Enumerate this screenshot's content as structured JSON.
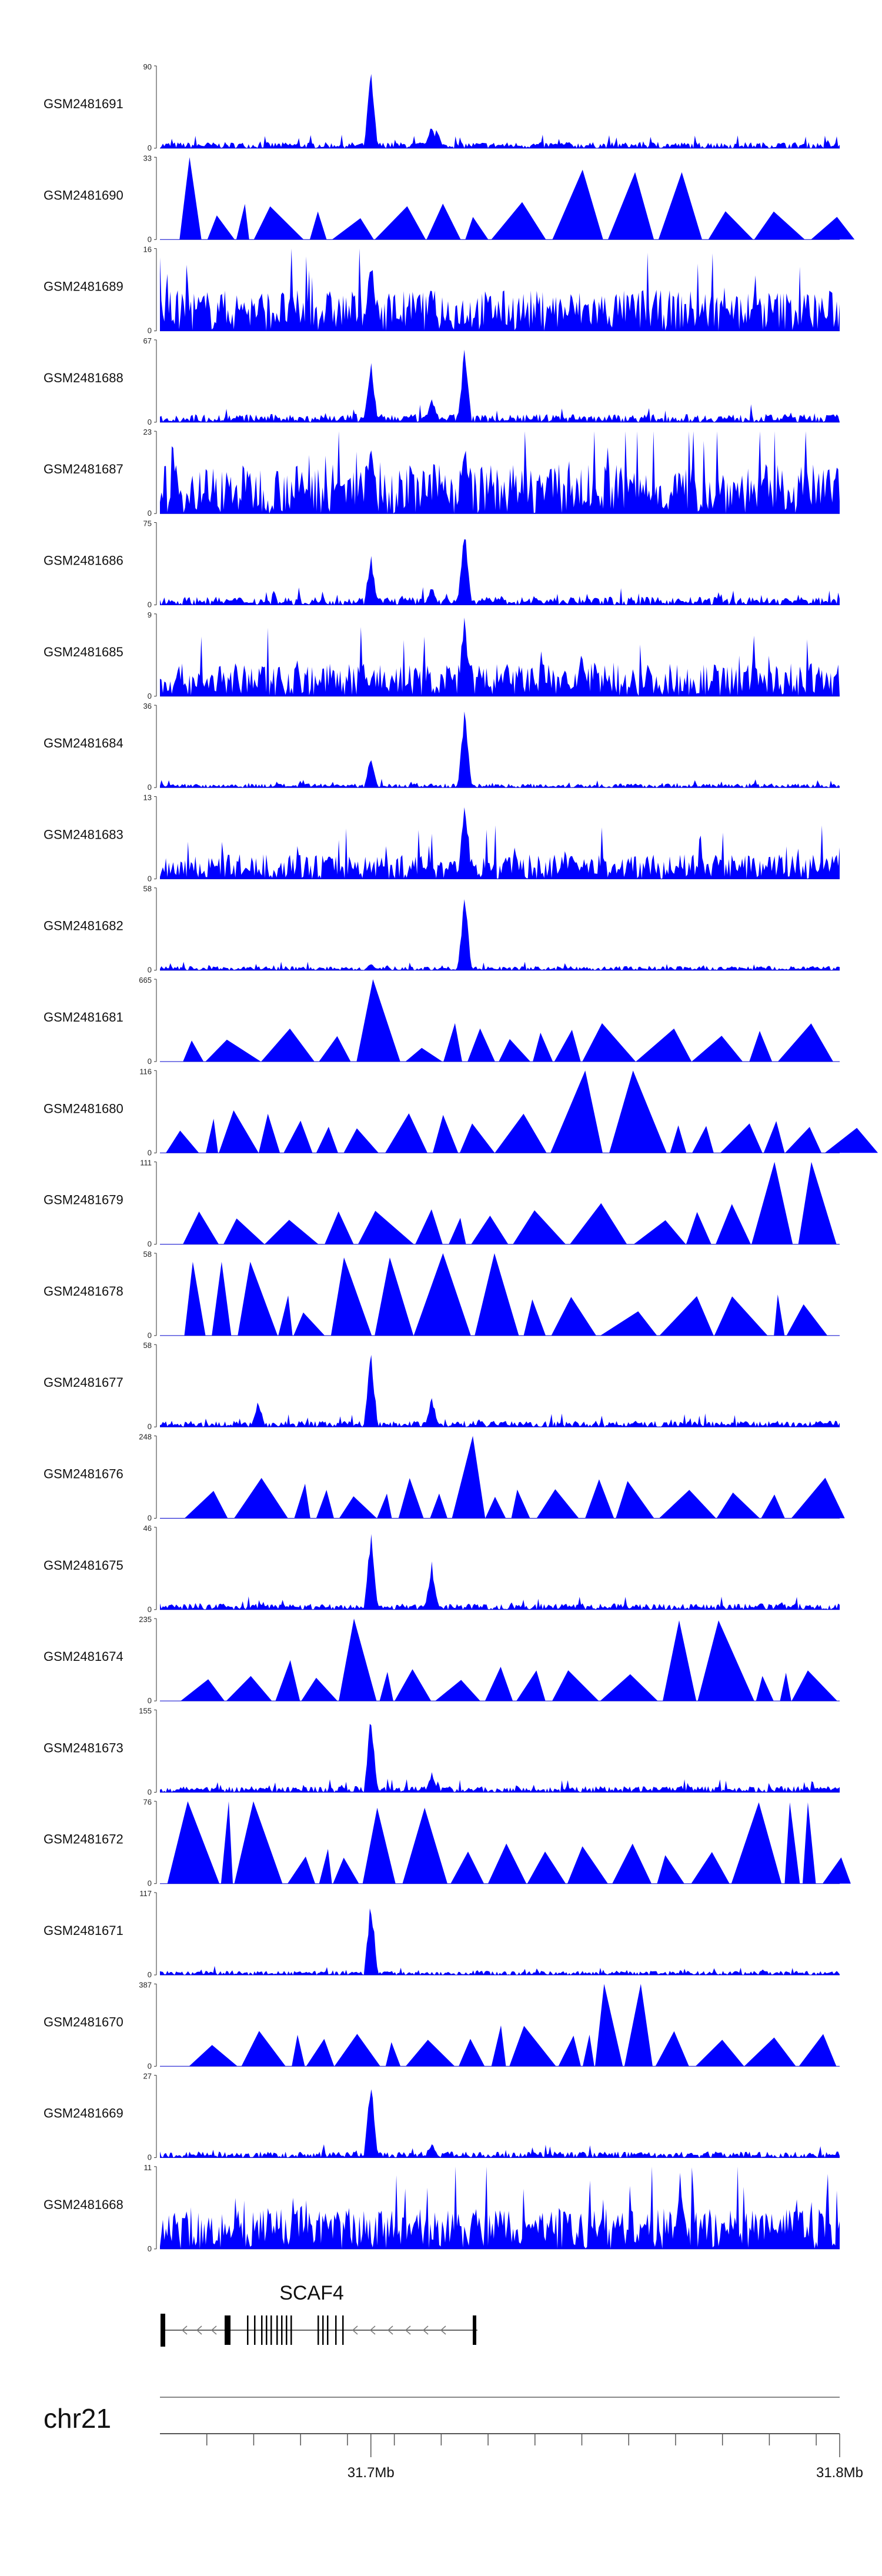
{
  "chart_data": {
    "type": "area",
    "fill_color": "#0000FF",
    "region": {
      "chrom": "chr21",
      "start": 31.655,
      "end": 31.8,
      "unit": "Mb"
    },
    "x_ticks": [
      31.7,
      31.8
    ],
    "x_tick_labels": [
      "31.7Mb",
      "31.8Mb"
    ],
    "chrom_label": "chr21",
    "gene": {
      "name": "SCAF4",
      "strand": "-"
    },
    "tracks": [
      {
        "name": "GSM2481691",
        "ymax": "90",
        "ymin": "0",
        "style": "peaky",
        "peaks": [
          [
            31.7,
            90
          ],
          [
            31.713,
            28
          ],
          [
            31.714,
            22
          ]
        ],
        "noise": 3
      },
      {
        "name": "GSM2481690",
        "ymax": "33",
        "ymin": "0",
        "style": "tri",
        "tallest": [
          [
            31.661,
            33
          ],
          [
            31.752,
            28
          ],
          [
            31.765,
            27
          ]
        ]
      },
      {
        "name": "GSM2481689",
        "ymax": "16",
        "ymin": "0",
        "style": "noise",
        "peaks": [
          [
            31.7,
            16
          ],
          [
            31.713,
            9
          ],
          [
            31.776,
            6
          ]
        ],
        "noise": 5
      },
      {
        "name": "GSM2481688",
        "ymax": "67",
        "ymin": "0",
        "style": "peaky",
        "peaks": [
          [
            31.7,
            55
          ],
          [
            31.713,
            22
          ],
          [
            31.72,
            67
          ]
        ],
        "noise": 4
      },
      {
        "name": "GSM2481687",
        "ymax": "23",
        "ymin": "0",
        "style": "noise",
        "peaks": [
          [
            31.7,
            23
          ],
          [
            31.72,
            22
          ]
        ],
        "noise": 6
      },
      {
        "name": "GSM2481686",
        "ymax": "75",
        "ymin": "0",
        "style": "peaky",
        "peaks": [
          [
            31.7,
            48
          ],
          [
            31.713,
            18
          ],
          [
            31.72,
            75
          ]
        ],
        "noise": 4
      },
      {
        "name": "GSM2481685",
        "ymax": "9",
        "ymin": "0",
        "style": "noise",
        "peaks": [
          [
            31.72,
            9
          ],
          [
            31.745,
            5
          ]
        ],
        "noise": 4
      },
      {
        "name": "GSM2481684",
        "ymax": "36",
        "ymin": "0",
        "style": "peaky",
        "peaks": [
          [
            31.7,
            15
          ],
          [
            31.72,
            36
          ]
        ],
        "noise": 2
      },
      {
        "name": "GSM2481683",
        "ymax": "13",
        "ymin": "0",
        "style": "noise",
        "peaks": [
          [
            31.72,
            13
          ]
        ],
        "noise": 3
      },
      {
        "name": "GSM2481682",
        "ymax": "58",
        "ymin": "0",
        "style": "peaky",
        "peaks": [
          [
            31.72,
            58
          ],
          [
            31.7,
            5
          ]
        ],
        "noise": 2
      },
      {
        "name": "GSM2481681",
        "ymax": "665",
        "ymin": "0",
        "style": "tri",
        "tallest": [
          [
            31.7,
            665
          ],
          [
            31.713,
            110
          ]
        ]
      },
      {
        "name": "GSM2481680",
        "ymax": "116",
        "ymin": "0",
        "style": "tri",
        "tallest": [
          [
            31.673,
            60
          ],
          [
            31.754,
            116
          ]
        ]
      },
      {
        "name": "GSM2481679",
        "ymax": "111",
        "ymin": "0",
        "style": "tri",
        "tallest": [
          [
            31.789,
            111
          ],
          [
            31.8,
            111
          ],
          [
            31.7,
            45
          ]
        ]
      },
      {
        "name": "GSM2481678",
        "ymax": "58",
        "ymin": "0",
        "style": "tri",
        "tallest": [
          [
            31.666,
            52
          ],
          [
            31.7,
            55
          ],
          [
            31.724,
            58
          ]
        ]
      },
      {
        "name": "GSM2481677",
        "ymax": "58",
        "ymin": "0",
        "style": "peaky",
        "peaks": [
          [
            31.7,
            58
          ],
          [
            31.713,
            22
          ],
          [
            31.676,
            20
          ]
        ],
        "noise": 3
      },
      {
        "name": "GSM2481676",
        "ymax": "248",
        "ymin": "0",
        "style": "tri",
        "tallest": [
          [
            31.72,
            248
          ]
        ]
      },
      {
        "name": "GSM2481675",
        "ymax": "46",
        "ymin": "0",
        "style": "peaky",
        "peaks": [
          [
            31.7,
            46
          ],
          [
            31.713,
            28
          ]
        ],
        "noise": 3
      },
      {
        "name": "GSM2481674",
        "ymax": "235",
        "ymin": "0",
        "style": "tri",
        "tallest": [
          [
            31.7,
            235
          ],
          [
            31.77,
            230
          ]
        ]
      },
      {
        "name": "GSM2481673",
        "ymax": "155",
        "ymin": "0",
        "style": "peaky",
        "peaks": [
          [
            31.7,
            155
          ],
          [
            31.713,
            40
          ]
        ],
        "noise": 3
      },
      {
        "name": "GSM2481672",
        "ymax": "76",
        "ymin": "0",
        "style": "tri",
        "tallest": [
          [
            31.669,
            76
          ],
          [
            31.704,
            70
          ],
          [
            31.792,
            75
          ]
        ]
      },
      {
        "name": "GSM2481671",
        "ymax": "117",
        "ymin": "0",
        "style": "peaky",
        "peaks": [
          [
            31.7,
            117
          ]
        ],
        "noise": 2
      },
      {
        "name": "GSM2481670",
        "ymax": "387",
        "ymin": "0",
        "style": "tri",
        "tallest": [
          [
            31.752,
            387
          ],
          [
            31.735,
            190
          ]
        ]
      },
      {
        "name": "GSM2481669",
        "ymax": "27",
        "ymin": "0",
        "style": "peaky",
        "peaks": [
          [
            31.7,
            27
          ],
          [
            31.713,
            5
          ]
        ],
        "noise": 3
      },
      {
        "name": "GSM2481668",
        "ymax": "11",
        "ymin": "0",
        "style": "noise",
        "peaks": [
          [
            31.766,
            11
          ]
        ],
        "noise": 5
      }
    ]
  }
}
